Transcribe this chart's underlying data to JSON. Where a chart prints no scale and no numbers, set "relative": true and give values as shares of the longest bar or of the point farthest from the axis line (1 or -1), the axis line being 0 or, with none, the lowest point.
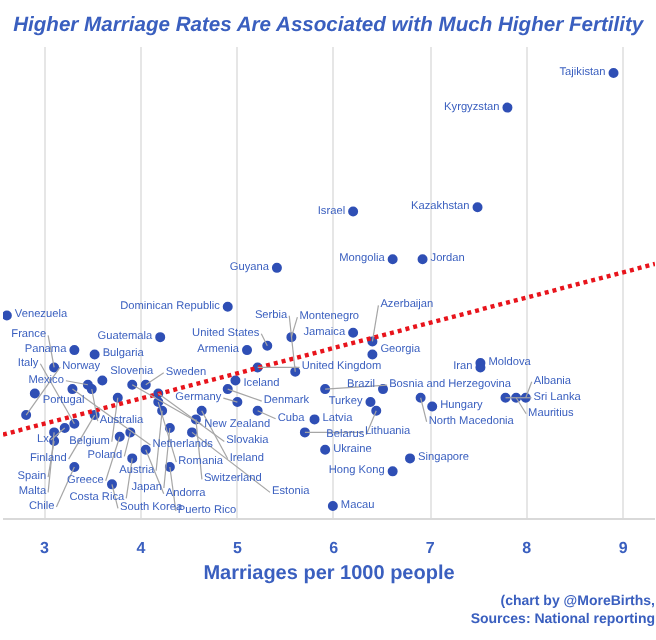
{
  "chart_data": {
    "type": "scatter",
    "title": "Higher Marriage Rates Are Associated with Much Higher Fertility",
    "xlabel": "Marriages per 1000 people",
    "relative": true,
    "xlim": [
      2.57,
      9.33
    ],
    "xticks": [
      3,
      4,
      5,
      6,
      7,
      8,
      9
    ],
    "grid": "x",
    "marker": "circle",
    "series": [
      {
        "color": "#2f4fb5",
        "x": [
          8.9,
          7.8,
          7.49,
          6.2,
          6.92,
          6.61,
          5.41,
          4.9,
          2.61,
          4.2,
          5.1,
          5.31,
          5.56,
          3.31,
          3.52,
          3.45,
          3.1,
          3.6,
          4.05,
          3.29,
          2.9,
          5.21,
          4.98,
          3.91,
          3.49,
          4.9,
          5.21,
          5.0,
          3.76,
          4.18,
          4.18,
          4.22,
          4.63,
          4.57,
          3.52,
          2.81,
          3.78,
          3.89,
          4.3,
          4.53,
          3.21,
          3.1,
          3.1,
          3.31,
          3.91,
          4.05,
          3.31,
          4.3,
          3.7,
          5.99,
          5.91,
          6.79,
          6.61,
          5.8,
          5.7,
          6.38,
          6.44,
          7.02,
          6.51,
          5.91,
          6.4,
          6.4,
          6.2,
          5.6,
          6.9,
          7.52,
          7.52,
          7.78,
          7.99,
          7.89
        ],
        "values": [
          1.0,
          0.92,
          0.69,
          0.68,
          0.57,
          0.57,
          0.55,
          0.46,
          0.44,
          0.39,
          0.36,
          0.37,
          0.39,
          0.36,
          0.35,
          0.28,
          0.32,
          0.29,
          0.28,
          0.27,
          0.26,
          0.32,
          0.29,
          0.28,
          0.27,
          0.27,
          0.22,
          0.24,
          0.25,
          0.26,
          0.24,
          0.22,
          0.22,
          0.2,
          0.21,
          0.21,
          0.16,
          0.17,
          0.18,
          0.17,
          0.18,
          0.15,
          0.17,
          0.19,
          0.11,
          0.13,
          0.09,
          0.09,
          0.05,
          0.0,
          0.13,
          0.11,
          0.08,
          0.2,
          0.17,
          0.24,
          0.22,
          0.23,
          0.27,
          0.27,
          0.35,
          0.38,
          0.4,
          0.31,
          0.25,
          0.33,
          0.32,
          0.25,
          0.25,
          0.25
        ]
      },
      {
        "type": "line",
        "color": "#e8141c",
        "line_style": "dotted",
        "marker": "none",
        "x": [
          2.57,
          9.33
        ],
        "values": [
          0.165,
          0.559
        ]
      }
    ],
    "annotations": [
      {
        "text": "Tajikistan",
        "x": 8.9,
        "y": 1.0
      },
      {
        "text": "Kyrgyzstan",
        "x": 7.8,
        "y": 0.92
      },
      {
        "text": "Kazakhstan",
        "x": 7.49,
        "y": 0.69
      },
      {
        "text": "Israel",
        "x": 6.2,
        "y": 0.68
      },
      {
        "text": "Jordan",
        "x": 6.92,
        "y": 0.57
      },
      {
        "text": "Mongolia",
        "x": 6.61,
        "y": 0.57
      },
      {
        "text": "Guyana",
        "x": 5.41,
        "y": 0.55
      },
      {
        "text": "Dominican Republic",
        "x": 4.9,
        "y": 0.46
      },
      {
        "text": "Venezuela",
        "x": 2.61,
        "y": 0.44
      },
      {
        "text": "Guatemala",
        "x": 4.2,
        "y": 0.39
      },
      {
        "text": "Armenia",
        "x": 5.1,
        "y": 0.36
      },
      {
        "text": "United States",
        "x": 5.31,
        "y": 0.37
      },
      {
        "text": "Montenegro",
        "x": 5.56,
        "y": 0.39
      },
      {
        "text": "Panama",
        "x": 3.31,
        "y": 0.36
      },
      {
        "text": "Bulgaria",
        "x": 3.52,
        "y": 0.35
      },
      {
        "text": "Mexico",
        "x": 3.45,
        "y": 0.28
      },
      {
        "text": "France",
        "x": 3.1,
        "y": 0.32
      },
      {
        "text": "Slovenia",
        "x": 3.6,
        "y": 0.29
      },
      {
        "text": "Sweden",
        "x": 4.05,
        "y": 0.28
      },
      {
        "text": "Netherlands",
        "x": 3.29,
        "y": 0.27
      },
      {
        "text": "Portugal",
        "x": 2.9,
        "y": 0.26
      },
      {
        "text": "United Kingdom",
        "x": 5.21,
        "y": 0.32
      },
      {
        "text": "Iceland",
        "x": 4.98,
        "y": 0.29
      },
      {
        "text": "New Zealand",
        "x": 3.91,
        "y": 0.28
      },
      {
        "text": "Australia",
        "x": 3.49,
        "y": 0.27
      },
      {
        "text": "Denmark",
        "x": 4.9,
        "y": 0.27
      },
      {
        "text": "Cuba",
        "x": 5.21,
        "y": 0.22
      },
      {
        "text": "Germany",
        "x": 5.0,
        "y": 0.24
      },
      {
        "text": "Belgium",
        "x": 3.76,
        "y": 0.25
      },
      {
        "text": "Slovakia",
        "x": 4.18,
        "y": 0.26
      },
      {
        "text": "Romania",
        "x": 4.18,
        "y": 0.24
      },
      {
        "text": "Austria",
        "x": 4.22,
        "y": 0.22
      },
      {
        "text": "Ireland",
        "x": 4.63,
        "y": 0.22
      },
      {
        "text": "Switzerland",
        "x": 4.57,
        "y": 0.2
      },
      {
        "text": "Finland",
        "x": 3.52,
        "y": 0.21
      },
      {
        "text": "Norway",
        "x": 2.81,
        "y": 0.21
      },
      {
        "text": "Greece",
        "x": 3.78,
        "y": 0.16
      },
      {
        "text": "Poland",
        "x": 3.89,
        "y": 0.17
      },
      {
        "text": "Japan",
        "x": 4.3,
        "y": 0.18
      },
      {
        "text": "Estonia",
        "x": 4.53,
        "y": 0.17
      },
      {
        "text": "Lx",
        "x": 3.21,
        "y": 0.18
      },
      {
        "text": "Spain",
        "x": 3.1,
        "y": 0.15
      },
      {
        "text": "Malta",
        "x": 3.1,
        "y": 0.17
      },
      {
        "text": "Italy",
        "x": 3.31,
        "y": 0.19
      },
      {
        "text": "Costa Rica",
        "x": 3.91,
        "y": 0.11
      },
      {
        "text": "Andorra",
        "x": 4.05,
        "y": 0.13
      },
      {
        "text": "Chile",
        "x": 3.31,
        "y": 0.09
      },
      {
        "text": "Puerto Rico",
        "x": 4.3,
        "y": 0.09
      },
      {
        "text": "South Korea",
        "x": 3.7,
        "y": 0.05
      },
      {
        "text": "Macau",
        "x": 5.99,
        "y": 0.0
      },
      {
        "text": "Ukraine",
        "x": 5.91,
        "y": 0.13
      },
      {
        "text": "Singapore",
        "x": 6.79,
        "y": 0.11
      },
      {
        "text": "Hong Kong",
        "x": 6.61,
        "y": 0.08
      },
      {
        "text": "Latvia",
        "x": 5.8,
        "y": 0.2
      },
      {
        "text": "Lithuania",
        "x": 5.7,
        "y": 0.17
      },
      {
        "text": "Turkey",
        "x": 6.38,
        "y": 0.24
      },
      {
        "text": "Belarus",
        "x": 6.44,
        "y": 0.22
      },
      {
        "text": "Hungary",
        "x": 7.02,
        "y": 0.23
      },
      {
        "text": "Brazil",
        "x": 6.51,
        "y": 0.27
      },
      {
        "text": "Bosnia and Herzegovina",
        "x": 5.91,
        "y": 0.27
      },
      {
        "text": "Georgia",
        "x": 6.4,
        "y": 0.35
      },
      {
        "text": "Azerbaijan",
        "x": 6.4,
        "y": 0.38
      },
      {
        "text": "Jamaica",
        "x": 6.2,
        "y": 0.4
      },
      {
        "text": "Serbia",
        "x": 5.6,
        "y": 0.31
      },
      {
        "text": "North Macedonia",
        "x": 6.9,
        "y": 0.25
      },
      {
        "text": "Moldova",
        "x": 7.52,
        "y": 0.33
      },
      {
        "text": "Iran",
        "x": 7.52,
        "y": 0.32
      },
      {
        "text": "Sri Lanka",
        "x": 7.78,
        "y": 0.25
      },
      {
        "text": "Albania",
        "x": 7.99,
        "y": 0.25
      },
      {
        "text": "Mauritius",
        "x": 7.89,
        "y": 0.25
      },
      "(chart by @MoreBirths,",
      "Sources: National reporting"
    ]
  }
}
